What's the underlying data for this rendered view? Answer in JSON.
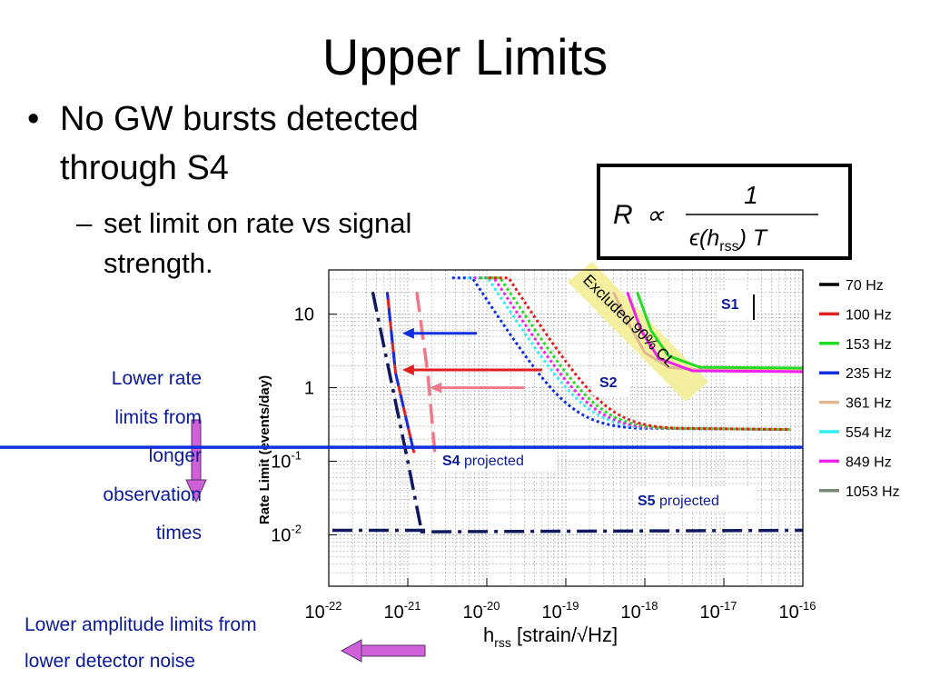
{
  "slide": {
    "title": "Upper Limits",
    "bullet_symbol": "•",
    "bullet": "No GW bursts detected through S4",
    "sub_bullet_symbol": "–",
    "sub_bullet": "set limit on rate vs signal strength.",
    "left_note": [
      "Lower rate",
      "limits from",
      "longer",
      "observation",
      "times"
    ],
    "bottom_note": [
      "Lower amplitude limits from",
      "lower detector noise"
    ],
    "arrow_color": "#d060d8"
  },
  "formula": {
    "lhs": "R",
    "relation": "∝",
    "numerator": "1",
    "denominator_eps": "ϵ(h",
    "denominator_sub": "rss",
    "denominator_tail": ") T"
  },
  "chart_data": {
    "type": "line",
    "x_log_exponents": [
      -22,
      -21,
      -20,
      -19,
      -18,
      -17,
      -16
    ],
    "y_log_exponents": [
      1,
      0,
      -1,
      -2
    ],
    "xlabel_main": "h",
    "xlabel_sub": "rss",
    "xlabel_tail": " [strain/√Hz]",
    "ylabel": "Rate Limit (events/day)",
    "xlim": [
      1e-22,
      1e-16
    ],
    "ylim": [
      0.002,
      40
    ],
    "scale": "log-log",
    "grid": true,
    "legend": {
      "position": "right",
      "entries": [
        {
          "label": "70 Hz",
          "color": "#000000"
        },
        {
          "label": "100 Hz",
          "color": "#e02020"
        },
        {
          "label": "153 Hz",
          "color": "#22dd22"
        },
        {
          "label": "235 Hz",
          "color": "#1030e0"
        },
        {
          "label": "361 Hz",
          "color": "#e0b890"
        },
        {
          "label": "554 Hz",
          "color": "#33eeee"
        },
        {
          "label": "849 Hz",
          "color": "#ee22ee"
        },
        {
          "label": "1053 Hz",
          "color": "#778877"
        }
      ]
    },
    "run_labels": {
      "s1": "S1",
      "s2": "S2",
      "s4": "S4",
      "s5": "S5",
      "projected": " projected"
    },
    "excluded_label": "Excluded 90% CL",
    "curves": {
      "s1": [
        {
          "color": "#e0b890",
          "points": [
            [
              4e-19,
              20
            ],
            [
              6e-19,
              8
            ],
            [
              1e-18,
              3
            ],
            [
              2e-18,
              1.9
            ],
            [
              5e-18,
              1.75
            ],
            [
              1e-16,
              1.7
            ]
          ]
        },
        {
          "color": "#22dd22",
          "points": [
            [
              8e-19,
              20
            ],
            [
              1.2e-18,
              6
            ],
            [
              2e-18,
              2.7
            ],
            [
              5e-18,
              1.9
            ],
            [
              1e-16,
              1.85
            ]
          ]
        },
        {
          "color": "#ee22ee",
          "points": [
            [
              6e-19,
              20
            ],
            [
              9e-19,
              6
            ],
            [
              1.5e-18,
              2.5
            ],
            [
              4e-18,
              1.7
            ],
            [
              1e-16,
              1.65
            ]
          ]
        }
      ],
      "s2_dotted": [
        {
          "color": "#1030e0",
          "xs": 8e-21
        },
        {
          "color": "#33eeee",
          "xs": 1.25e-20
        },
        {
          "color": "#ee22ee",
          "xs": 1.5e-20
        },
        {
          "color": "#22dd22",
          "xs": 1.8e-20
        },
        {
          "color": "#e02020",
          "xs": 2.3e-20
        }
      ],
      "s2_plateau": 0.27,
      "s4_lines": [
        {
          "color": "#e02020",
          "points": [
            [
              5.5e-22,
              20
            ],
            [
              7e-22,
              1.6
            ],
            [
              1.2e-21,
              0.13
            ]
          ]
        },
        {
          "color": "#1030e0",
          "points": [
            [
              5.5e-22,
              20
            ],
            [
              7e-22,
              1.6
            ],
            [
              1.2e-21,
              0.13
            ]
          ]
        },
        {
          "color": "#f07888",
          "points": [
            [
              1.3e-21,
              20
            ],
            [
              1.8e-21,
              1.5
            ],
            [
              2.2e-21,
              0.13
            ]
          ]
        },
        {
          "color": "#101860",
          "points": [
            [
              3.6e-22,
              20
            ],
            [
              1e-21,
              0.1
            ],
            [
              1.5e-21,
              0.011
            ],
            [
              1.9e-21,
              0.011
            ]
          ]
        }
      ],
      "s4_projected_rate": 0.155,
      "s5_projected_rate": 0.0115,
      "arrows": [
        {
          "color": "#1030e0",
          "rate": 5.5,
          "from": 7.5e-21,
          "to": 8.5e-22
        },
        {
          "color": "#e02020",
          "rate": 1.75,
          "from": 5e-20,
          "to": 8.5e-22
        },
        {
          "color": "#f07888",
          "rate": 1.0,
          "from": 3e-20,
          "to": 1.9e-21
        }
      ]
    }
  }
}
